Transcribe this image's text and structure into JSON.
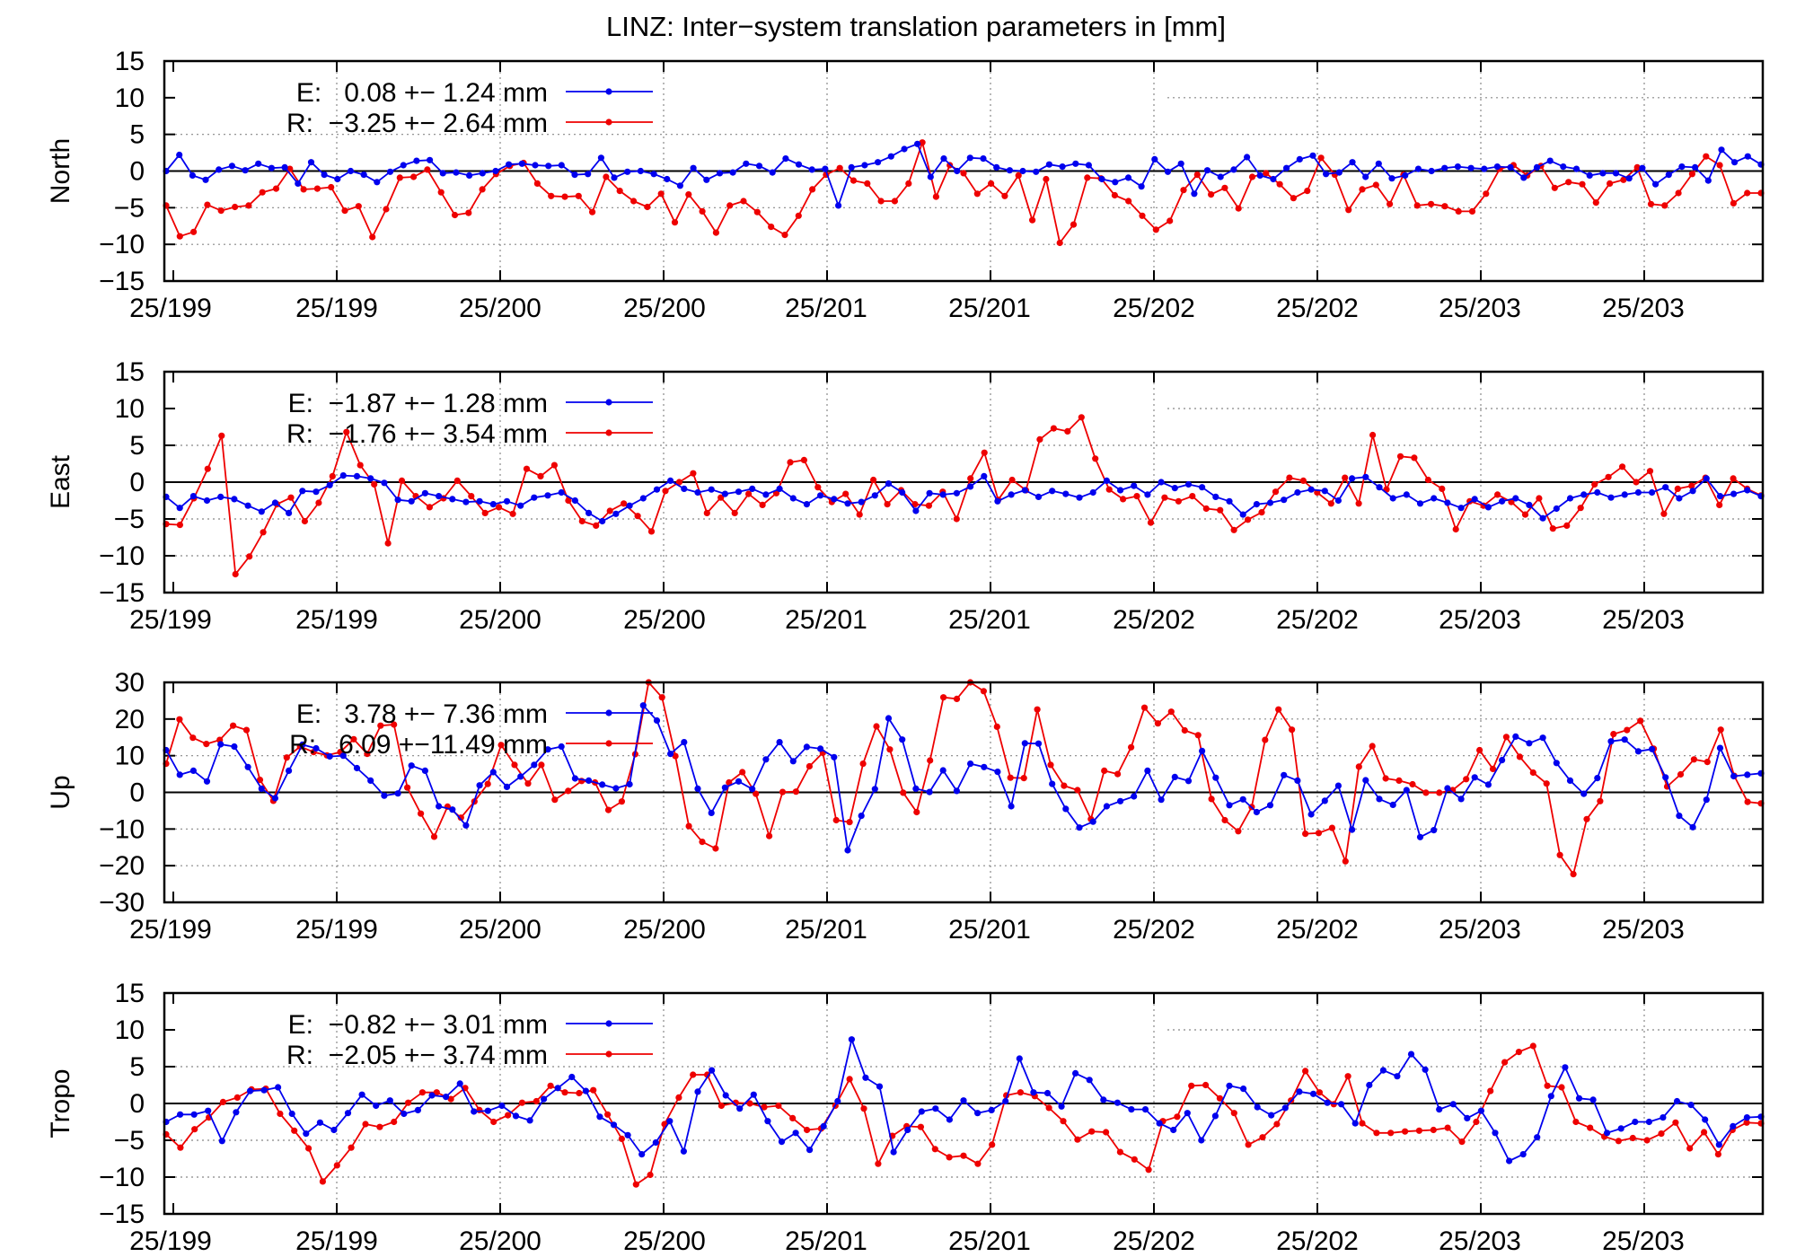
{
  "title": "LINZ: Inter−system translation parameters in [mm]",
  "colors": {
    "E": "#0000ee",
    "R": "#ee0000",
    "axis": "#000000",
    "grid": "#888888"
  },
  "x_tick_labels": [
    "25/199",
    "25/199",
    "25/200",
    "25/200",
    "25/201",
    "25/201",
    "25/202",
    "25/202",
    "25/203",
    "25/203"
  ],
  "chart_data": [
    {
      "type": "line",
      "ylabel": "North",
      "ylim": [
        -15,
        15
      ],
      "yticks": [
        -15,
        -10,
        -5,
        0,
        5,
        10,
        15
      ],
      "grid": true,
      "legend": [
        {
          "series": "E",
          "text": "E:   0.08 +− 1.24 mm"
        },
        {
          "series": "R",
          "text": "R:  −3.25 +− 2.64 mm"
        }
      ],
      "series": [
        {
          "name": "E",
          "values": [
            0.0,
            2.2,
            -0.6,
            -1.2,
            0.2,
            0.7,
            0.1,
            1.0,
            0.4,
            0.5,
            -1.7,
            1.2,
            -0.5,
            -1.1,
            0.0,
            -0.5,
            -1.5,
            -0.1,
            0.8,
            1.4,
            1.5,
            -0.3,
            -0.2,
            -0.6,
            -0.3,
            0.0,
            0.9,
            1.0,
            0.8,
            0.7,
            0.8,
            -0.5,
            -0.4,
            1.8,
            -0.9,
            -0.1,
            0.0,
            -0.4,
            -1.1,
            -2.0,
            0.4,
            -1.2,
            -0.3,
            -0.2,
            1.0,
            0.7,
            -0.2,
            1.7,
            0.9,
            0.2,
            0.3,
            -4.7,
            0.5,
            0.8,
            1.2,
            2.0,
            3.0,
            3.7,
            -0.8,
            1.7,
            0.0,
            1.8,
            1.7,
            0.5,
            0.1,
            0.0,
            -0.1,
            0.9,
            0.6,
            1.0,
            0.8,
            -1.1,
            -1.5,
            -0.9,
            -2.1,
            1.6,
            -0.1,
            1.0,
            -3.1,
            0.1,
            -0.8,
            0.2,
            1.9,
            -0.6,
            -1.1,
            0.4,
            1.6,
            2.1,
            -0.4,
            -0.2,
            1.2,
            -0.8,
            1.0,
            -1.0,
            -0.6,
            0.3,
            0.0,
            0.4,
            0.6,
            0.4,
            0.3,
            0.6,
            0.5,
            -0.9,
            0.5,
            1.4,
            0.6,
            0.3,
            -0.6,
            -0.3,
            -0.3,
            -1.0,
            0.4,
            -1.8,
            -0.5,
            0.6,
            0.5,
            -1.3,
            2.9,
            1.2,
            2.0,
            0.9
          ]
        },
        {
          "name": "R",
          "values": [
            -4.7,
            -8.9,
            -8.3,
            -4.6,
            -5.4,
            -4.9,
            -4.7,
            -2.9,
            -2.4,
            0.3,
            -2.5,
            -2.4,
            -2.2,
            -5.4,
            -4.8,
            -9.0,
            -5.2,
            -0.9,
            -0.8,
            0.2,
            -2.9,
            -6.0,
            -5.7,
            -2.5,
            -0.4,
            0.7,
            1.1,
            -1.7,
            -3.4,
            -3.5,
            -3.4,
            -5.6,
            -0.8,
            -2.7,
            -4.1,
            -4.9,
            -3.1,
            -7.0,
            -3.2,
            -5.5,
            -8.4,
            -4.7,
            -4.1,
            -5.6,
            -7.6,
            -8.7,
            -6.1,
            -2.5,
            -0.5,
            0.4,
            -1.3,
            -1.7,
            -4.1,
            -4.1,
            -1.7,
            3.9,
            -3.5,
            0.8,
            -0.3,
            -3.1,
            -1.7,
            -3.4,
            -0.6,
            -6.7,
            -1.1,
            -9.8,
            -7.3,
            -0.9,
            -1.0,
            -3.3,
            -4.1,
            -6.1,
            -8.0,
            -6.8,
            -2.6,
            -0.5,
            -3.2,
            -2.3,
            -5.1,
            -0.8,
            -0.3,
            -1.8,
            -3.7,
            -2.7,
            1.8,
            -0.5,
            -5.3,
            -2.5,
            -1.9,
            -4.5,
            -0.5,
            -4.7,
            -4.5,
            -4.8,
            -5.5,
            -5.5,
            -3.1,
            0.3,
            0.8,
            -0.6,
            0.7,
            -2.3,
            -1.5,
            -1.8,
            -4.3,
            -1.7,
            -1.2,
            0.5,
            -4.5,
            -4.7,
            -3.0,
            -0.4,
            2.0,
            0.8,
            -4.4,
            -3.0,
            -3.0
          ]
        }
      ]
    },
    {
      "type": "line",
      "ylabel": "East",
      "ylim": [
        -15,
        15
      ],
      "yticks": [
        -15,
        -10,
        -5,
        0,
        5,
        10,
        15
      ],
      "grid": true,
      "legend": [
        {
          "series": "E",
          "text": "E:  −1.87 +− 1.28 mm"
        },
        {
          "series": "R",
          "text": "R:  −1.76 +− 3.54 mm"
        }
      ],
      "series": [
        {
          "name": "E",
          "values": [
            -2.0,
            -3.5,
            -1.9,
            -2.5,
            -2.0,
            -2.3,
            -3.2,
            -4.0,
            -2.8,
            -4.2,
            -1.2,
            -1.3,
            -0.4,
            0.9,
            0.8,
            0.5,
            -0.1,
            -2.4,
            -2.6,
            -1.5,
            -1.9,
            -2.3,
            -2.7,
            -2.6,
            -3.0,
            -2.6,
            -3.2,
            -2.1,
            -1.8,
            -1.4,
            -2.5,
            -4.2,
            -5.3,
            -4.3,
            -3.2,
            -2.2,
            -1.0,
            0.2,
            -0.9,
            -1.4,
            -1.0,
            -1.6,
            -1.3,
            -0.9,
            -1.7,
            -0.9,
            -2.2,
            -3.0,
            -1.8,
            -2.3,
            -2.9,
            -2.7,
            -1.8,
            -0.2,
            -1.4,
            -3.9,
            -1.5,
            -1.7,
            -1.5,
            -0.6,
            0.8,
            -2.6,
            -1.7,
            -1.1,
            -2.0,
            -1.2,
            -1.6,
            -2.1,
            -1.4,
            0.2,
            -1.1,
            -0.5,
            -1.7,
            0.0,
            -0.8,
            -0.3,
            -0.7,
            -2.0,
            -2.6,
            -4.4,
            -3.0,
            -2.8,
            -2.4,
            -1.4,
            -1.0,
            -1.2,
            -2.5,
            0.5,
            0.7,
            -0.7,
            -2.2,
            -1.7,
            -2.9,
            -2.2,
            -2.8,
            -3.5,
            -2.3,
            -3.4,
            -2.6,
            -2.2,
            -3.1,
            -4.9,
            -3.6,
            -2.2,
            -1.7,
            -1.4,
            -2.1,
            -1.7,
            -1.4,
            -1.4,
            -0.7,
            -2.2,
            -1.2,
            0.5,
            -1.9,
            -1.6,
            -1.1,
            -1.9
          ]
        },
        {
          "name": "R",
          "values": [
            -5.7,
            -5.8,
            -2.2,
            1.8,
            6.3,
            -12.5,
            -10.1,
            -6.8,
            -3.0,
            -2.1,
            -5.3,
            -2.8,
            0.8,
            6.8,
            2.3,
            -0.3,
            -8.3,
            0.2,
            -1.9,
            -3.4,
            -2.2,
            0.2,
            -1.9,
            -4.2,
            -3.4,
            -4.3,
            1.8,
            0.8,
            2.3,
            -2.5,
            -5.3,
            -5.9,
            -3.9,
            -2.9,
            -4.6,
            -6.7,
            -1.2,
            0.0,
            1.2,
            -4.2,
            -2.1,
            -4.2,
            -1.6,
            -3.1,
            -1.5,
            2.7,
            3.0,
            -0.7,
            -2.7,
            -1.6,
            -4.4,
            0.3,
            -3.0,
            -1.1,
            -3.0,
            -3.2,
            -1.3,
            -5.0,
            0.5,
            4.0,
            -2.4,
            0.3,
            -1.1,
            5.8,
            7.3,
            6.9,
            8.8,
            3.2,
            -1.0,
            -2.3,
            -1.9,
            -5.5,
            -2.1,
            -2.6,
            -1.9,
            -3.6,
            -3.8,
            -6.5,
            -5.1,
            -4.1,
            -1.3,
            0.6,
            0.2,
            -1.4,
            -2.9,
            0.6,
            -2.9,
            6.4,
            -1.0,
            3.5,
            3.3,
            0.3,
            -0.9,
            -6.4,
            -2.6,
            -3.2,
            -1.7,
            -2.7,
            -4.4,
            -2.2,
            -6.3,
            -5.9,
            -3.5,
            -0.3,
            0.7,
            2.1,
            0.0,
            1.5,
            -4.3,
            -0.9,
            -0.5,
            0.6,
            -3.1,
            0.5,
            -0.9,
            -1.8
          ]
        }
      ]
    },
    {
      "type": "line",
      "ylabel": "Up",
      "ylim": [
        -30,
        30
      ],
      "yticks": [
        -30,
        -20,
        -10,
        0,
        10,
        20,
        30
      ],
      "grid": true,
      "legend": [
        {
          "series": "E",
          "text": "E:   3.78 +− 7.36 mm"
        },
        {
          "series": "R",
          "text": "R:   6.09 +−11.49 mm"
        }
      ],
      "series": [
        {
          "name": "E",
          "values": [
            11.5,
            4.8,
            5.9,
            3.0,
            13.1,
            12.5,
            6.9,
            1.0,
            -1.6,
            5.9,
            13.0,
            12.0,
            9.8,
            10.0,
            6.6,
            3.2,
            -0.9,
            -0.3,
            7.3,
            5.9,
            -3.8,
            -4.7,
            -9.0,
            1.9,
            5.5,
            1.5,
            4.3,
            7.5,
            11.7,
            12.5,
            3.8,
            3.2,
            2.1,
            1.1,
            2.2,
            23.7,
            19.6,
            10.5,
            13.7,
            1.0,
            -5.6,
            1.3,
            3.0,
            0.9,
            9.0,
            13.7,
            8.5,
            12.4,
            11.9,
            9.6,
            -15.8,
            -6.4,
            0.9,
            20.2,
            14.4,
            1.0,
            0.1,
            6.0,
            0.4,
            7.8,
            6.9,
            5.6,
            -3.8,
            13.4,
            13.3,
            2.3,
            -4.5,
            -9.6,
            -8.0,
            -3.8,
            -2.4,
            -1.1,
            5.9,
            -2.0,
            4.2,
            3.1,
            11.3,
            4.0,
            -3.5,
            -1.9,
            -5.4,
            -3.5,
            4.7,
            3.2,
            -6.0,
            -2.3,
            1.8,
            -10.2,
            3.3,
            -1.8,
            -3.4,
            0.6,
            -12.2,
            -10.3,
            1.1,
            -1.8,
            4.1,
            2.1,
            8.8,
            15.2,
            13.4,
            14.9,
            8.0,
            3.2,
            -0.4,
            3.9,
            13.9,
            14.4,
            11.2,
            11.8,
            4.1,
            -6.4,
            -9.5,
            -2.0,
            12.1,
            4.4,
            4.8,
            5.2
          ]
        },
        {
          "name": "R",
          "values": [
            7.8,
            19.9,
            14.9,
            13.2,
            14.3,
            18.2,
            17.0,
            3.4,
            -2.3,
            9.5,
            12.5,
            11.0,
            10.1,
            11.0,
            14.5,
            10.5,
            18.2,
            18.5,
            1.3,
            -5.8,
            -12.1,
            -3.9,
            -6.9,
            -2.5,
            2.3,
            12.9,
            7.5,
            2.4,
            7.5,
            -2.0,
            0.4,
            3.1,
            2.7,
            -4.8,
            -2.5,
            10.4,
            30.0,
            25.9,
            9.9,
            -9.2,
            -13.5,
            -15.3,
            2.7,
            5.5,
            -0.4,
            -11.9,
            0.1,
            0.2,
            7.1,
            10.8,
            -7.6,
            -8.1,
            7.8,
            18.0,
            11.7,
            -0.1,
            -5.4,
            8.7,
            25.9,
            25.5,
            30.0,
            27.6,
            17.9,
            4.0,
            3.9,
            22.6,
            7.5,
            1.8,
            0.6,
            -7.3,
            5.9,
            5.0,
            12.3,
            23.1,
            18.8,
            22.0,
            16.9,
            15.6,
            -1.8,
            -7.6,
            -10.6,
            -4.0,
            14.3,
            22.6,
            17.1,
            -11.3,
            -11.1,
            -9.7,
            -18.8,
            7.0,
            12.6,
            3.8,
            3.2,
            2.2,
            -0.1,
            -0.1,
            0.6,
            3.6,
            11.5,
            6.4,
            15.1,
            9.7,
            5.4,
            2.4,
            -17.1,
            -22.3,
            -7.3,
            -2.4,
            15.9,
            17.0,
            19.5,
            11.9,
            1.6,
            4.9,
            9.0,
            8.3,
            17.1,
            4.5,
            -2.6,
            -3.0
          ]
        }
      ]
    },
    {
      "type": "line",
      "ylabel": "Tropo",
      "ylim": [
        -15,
        15
      ],
      "yticks": [
        -15,
        -10,
        -5,
        0,
        5,
        10,
        15
      ],
      "grid": true,
      "legend": [
        {
          "series": "E",
          "text": "E:  −0.82 +− 3.01 mm"
        },
        {
          "series": "R",
          "text": "R:  −2.05 +− 3.74 mm"
        }
      ],
      "series": [
        {
          "name": "E",
          "values": [
            -2.5,
            -1.5,
            -1.5,
            -1.0,
            -5.1,
            -1.2,
            1.7,
            1.8,
            2.2,
            -1.4,
            -4.1,
            -2.6,
            -3.6,
            -1.3,
            1.2,
            -0.3,
            0.4,
            -1.4,
            -0.9,
            1.1,
            0.9,
            2.7,
            -1.1,
            -1.0,
            -0.3,
            -1.7,
            -2.3,
            0.6,
            2.1,
            3.6,
            1.7,
            -1.8,
            -2.9,
            -4.3,
            -6.9,
            -5.3,
            -2.4,
            -6.5,
            1.6,
            4.5,
            1.1,
            -0.7,
            1.2,
            -2.4,
            -5.2,
            -4.0,
            -6.3,
            -3.1,
            0.3,
            8.7,
            3.5,
            2.3,
            -6.6,
            -3.6,
            -1.1,
            -0.7,
            -2.2,
            0.4,
            -1.3,
            -0.9,
            0.3,
            6.1,
            1.5,
            1.4,
            -0.4,
            4.1,
            3.2,
            0.5,
            0.1,
            -0.8,
            -0.8,
            -2.7,
            -3.6,
            -1.3,
            -5.0,
            -1.7,
            2.4,
            2.0,
            -0.5,
            -1.6,
            -0.6,
            1.6,
            1.3,
            0.1,
            -0.1,
            -2.7,
            2.5,
            4.5,
            3.7,
            6.7,
            4.6,
            -0.8,
            -0.1,
            -2.0,
            -1.0,
            -4.0,
            -7.8,
            -6.9,
            -4.6,
            1.0,
            4.9,
            0.7,
            0.5,
            -4.0,
            -3.4,
            -2.5,
            -2.5,
            -1.9,
            0.3,
            -0.2,
            -2.2,
            -5.6,
            -3.1,
            -1.9,
            -1.8
          ]
        },
        {
          "name": "R",
          "values": [
            -4.2,
            -6.0,
            -3.5,
            -1.9,
            0.2,
            0.8,
            1.9,
            2.0,
            -1.4,
            -3.7,
            -6.1,
            -10.6,
            -8.4,
            -6.0,
            -2.8,
            -3.2,
            -2.5,
            0.1,
            1.5,
            1.5,
            0.6,
            2.1,
            -0.9,
            -2.5,
            -1.6,
            0.1,
            0.3,
            2.4,
            1.5,
            1.4,
            1.8,
            -1.5,
            -4.8,
            -11.0,
            -9.7,
            -2.8,
            0.8,
            3.9,
            3.9,
            -0.3,
            0.1,
            0.0,
            -0.5,
            -0.3,
            -2.0,
            -3.6,
            -3.4,
            -0.3,
            3.3,
            -0.7,
            -8.2,
            -4.4,
            -3.1,
            -3.2,
            -6.2,
            -7.3,
            -7.1,
            -8.2,
            -5.6,
            1.1,
            1.5,
            1.0,
            -0.6,
            -2.4,
            -4.9,
            -3.8,
            -3.9,
            -6.6,
            -7.6,
            -9.0,
            -2.4,
            -1.8,
            2.4,
            2.5,
            0.7,
            -1.3,
            -5.6,
            -4.6,
            -2.8,
            0.4,
            4.4,
            1.5,
            -0.1,
            3.7,
            -2.7,
            -4.0,
            -4.0,
            -3.8,
            -3.7,
            -3.6,
            -3.3,
            -5.2,
            -2.5,
            1.7,
            5.6,
            7.0,
            7.8,
            2.4,
            2.2,
            -2.5,
            -3.3,
            -4.5,
            -5.1,
            -4.7,
            -5.0,
            -4.1,
            -2.6,
            -6.1,
            -3.9,
            -6.9,
            -3.6,
            -2.6,
            -2.7
          ]
        }
      ]
    }
  ]
}
